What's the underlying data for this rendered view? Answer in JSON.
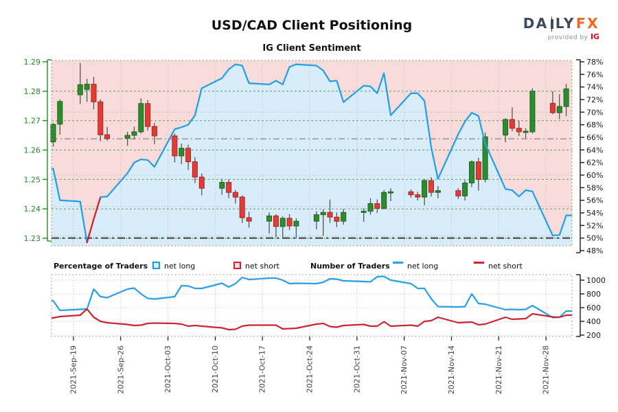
{
  "header": {
    "title": "USD/CAD Client Positioning",
    "subtitle": "IG Client Sentiment",
    "logo": {
      "part1": "DA",
      "part2": "LY",
      "part3": "FX",
      "provided_by": "provided by",
      "ig": "IG"
    }
  },
  "legend": {
    "pct_title": "Percentage of Traders",
    "pct_net_long": "net long",
    "pct_net_short": "net short",
    "num_title": "Number of Traders",
    "num_net_long": "net long",
    "num_net_short": "net short"
  },
  "colors": {
    "accent_blue": "#27a0e5",
    "accent_red": "#cc2433",
    "sentiment_red": "#cf2030",
    "candle_up": "#2e8b2e",
    "candle_up_border": "#1c641c",
    "candle_down": "#e23d35",
    "candle_down_border": "#aa2420",
    "wick": "#555555",
    "fill_above_line": "#f8dcdc",
    "fill_below_line": "#d8ecf9",
    "grid_green": "#3da23d",
    "grid_gray": "#c9c9c9",
    "dotted_gray": "#bbbbbb",
    "dashdot_price": "#8c8c8c",
    "dashdot_fifty": "#606060",
    "border_main": "#7aa87a",
    "border_traders": "#a6a6a6",
    "axis_price_green": "#1f8a1f",
    "axis_dark": "#1a1a1a",
    "date_label": "#3d4554",
    "logo_daily": "#3d4a5c",
    "logo_fx": "#f4641d",
    "logo_ig": "#e40521"
  },
  "chart_data": {
    "type": "candlestick+line",
    "title": "USD/CAD Client Positioning",
    "subtitle": "IG Client Sentiment",
    "price_axis": {
      "side": "left",
      "min": 1.23,
      "max": 1.29,
      "tick_step": 0.01,
      "ticks": [
        1.23,
        1.24,
        1.25,
        1.26,
        1.27,
        1.28,
        1.29
      ]
    },
    "pct_axis": {
      "side": "right",
      "min": 48,
      "max": 78,
      "tick_step": 2,
      "ticks": [
        48,
        50,
        52,
        54,
        56,
        58,
        60,
        62,
        64,
        66,
        68,
        70,
        72,
        74,
        76,
        78
      ]
    },
    "count_axis": {
      "side": "right",
      "min": 200,
      "max": 1000,
      "tick_step": 200,
      "ticks": [
        200,
        400,
        600,
        800,
        1000
      ]
    },
    "date_ticks": [
      {
        "label": "2021-Sep-19",
        "day": 3
      },
      {
        "label": "2021-Sep-26",
        "day": 10
      },
      {
        "label": "2021-Oct-03",
        "day": 17
      },
      {
        "label": "2021-Oct-10",
        "day": 24
      },
      {
        "label": "2021-Oct-17",
        "day": 31
      },
      {
        "label": "2021-Oct-24",
        "day": 38
      },
      {
        "label": "2021-Oct-31",
        "day": 45
      },
      {
        "label": "2021-Nov-07",
        "day": 52
      },
      {
        "label": "2021-Nov-14",
        "day": 59
      },
      {
        "label": "2021-Nov-21",
        "day": 66
      },
      {
        "label": "2021-Nov-28",
        "day": 73
      }
    ],
    "hlines": {
      "price_dashdot": 1.2638,
      "pct_dashdot": 50.0,
      "pct_dotted": [
        70,
        60,
        55,
        50.4
      ]
    },
    "sentiment_red_segment": [
      3,
      5
    ],
    "dates": [
      "2021-09-16",
      "2021-09-17",
      "2021-09-20",
      "2021-09-21",
      "2021-09-22",
      "2021-09-23",
      "2021-09-24",
      "2021-09-27",
      "2021-09-28",
      "2021-09-29",
      "2021-09-30",
      "2021-10-01",
      "2021-10-04",
      "2021-10-05",
      "2021-10-06",
      "2021-10-07",
      "2021-10-08",
      "2021-10-11",
      "2021-10-12",
      "2021-10-13",
      "2021-10-14",
      "2021-10-15",
      "2021-10-18",
      "2021-10-19",
      "2021-10-20",
      "2021-10-21",
      "2021-10-22",
      "2021-10-25",
      "2021-10-26",
      "2021-10-27",
      "2021-10-28",
      "2021-10-29",
      "2021-11-01",
      "2021-11-02",
      "2021-11-03",
      "2021-11-04",
      "2021-11-05",
      "2021-11-08",
      "2021-11-09",
      "2021-11-10",
      "2021-11-11",
      "2021-11-12",
      "2021-11-15",
      "2021-11-16",
      "2021-11-17",
      "2021-11-18",
      "2021-11-19",
      "2021-11-22",
      "2021-11-23",
      "2021-11-24",
      "2021-11-25",
      "2021-11-26",
      "2021-11-29",
      "2021-11-30",
      "2021-12-01"
    ],
    "day_offsets": [
      0,
      1,
      4,
      5,
      6,
      7,
      8,
      11,
      12,
      13,
      14,
      15,
      18,
      19,
      20,
      21,
      22,
      25,
      26,
      27,
      28,
      29,
      32,
      33,
      34,
      35,
      36,
      39,
      40,
      41,
      42,
      43,
      46,
      47,
      48,
      49,
      50,
      53,
      54,
      55,
      56,
      57,
      60,
      61,
      62,
      63,
      64,
      67,
      68,
      69,
      70,
      71,
      74,
      75,
      76
    ],
    "ohlc": [
      [
        1.2628,
        1.2692,
        1.2612,
        1.2687
      ],
      [
        1.2688,
        1.2772,
        1.2652,
        1.2765
      ],
      [
        1.2788,
        1.2896,
        1.2756,
        1.2822
      ],
      [
        1.2806,
        1.2842,
        1.2764,
        1.2824
      ],
      [
        1.2824,
        1.2849,
        1.2738,
        1.2764
      ],
      [
        1.2764,
        1.2772,
        1.263,
        1.2652
      ],
      [
        1.2652,
        1.2678,
        1.2632,
        1.264
      ],
      [
        1.264,
        1.2662,
        1.2614,
        1.265
      ],
      [
        1.265,
        1.268,
        1.2636,
        1.2662
      ],
      [
        1.2662,
        1.2776,
        1.2656,
        1.2758
      ],
      [
        1.2758,
        1.277,
        1.2666,
        1.268
      ],
      [
        1.268,
        1.2692,
        1.262,
        1.2648
      ],
      [
        1.2648,
        1.2656,
        1.2558,
        1.258
      ],
      [
        1.258,
        1.2622,
        1.2552,
        1.2606
      ],
      [
        1.2606,
        1.2618,
        1.2532,
        1.256
      ],
      [
        1.256,
        1.2576,
        1.2488,
        1.2508
      ],
      [
        1.2508,
        1.252,
        1.2446,
        1.247
      ],
      [
        1.247,
        1.2502,
        1.2448,
        1.249
      ],
      [
        1.249,
        1.25,
        1.2436,
        1.2456
      ],
      [
        1.2456,
        1.2464,
        1.2418,
        1.244
      ],
      [
        1.244,
        1.2446,
        1.2352,
        1.237
      ],
      [
        1.237,
        1.239,
        1.2336,
        1.2358
      ],
      [
        1.2358,
        1.2388,
        1.2316,
        1.2376
      ],
      [
        1.2376,
        1.2382,
        1.2304,
        1.234
      ],
      [
        1.234,
        1.2374,
        1.2302,
        1.2368
      ],
      [
        1.2368,
        1.2382,
        1.2328,
        1.2342
      ],
      [
        1.2342,
        1.2368,
        1.23,
        1.2358
      ],
      [
        1.2358,
        1.2392,
        1.233,
        1.238
      ],
      [
        1.238,
        1.2398,
        1.2308,
        1.2388
      ],
      [
        1.2388,
        1.2432,
        1.2352,
        1.2372
      ],
      [
        1.2372,
        1.2388,
        1.2338,
        1.2358
      ],
      [
        1.2358,
        1.24,
        1.2346,
        1.2388
      ],
      [
        1.2388,
        1.2402,
        1.2356,
        1.2392
      ],
      [
        1.2392,
        1.2436,
        1.238,
        1.2418
      ],
      [
        1.2418,
        1.2432,
        1.2386,
        1.2402
      ],
      [
        1.2402,
        1.2464,
        1.2398,
        1.2456
      ],
      [
        1.2456,
        1.247,
        1.2426,
        1.2458
      ],
      [
        1.2458,
        1.2466,
        1.2438,
        1.2448
      ],
      [
        1.2448,
        1.2458,
        1.2428,
        1.244
      ],
      [
        1.244,
        1.2502,
        1.2412,
        1.2496
      ],
      [
        1.2496,
        1.2508,
        1.2442,
        1.2456
      ],
      [
        1.2456,
        1.2478,
        1.2436,
        1.2462
      ],
      [
        1.2462,
        1.247,
        1.2434,
        1.2444
      ],
      [
        1.2444,
        1.2498,
        1.2428,
        1.2488
      ],
      [
        1.2488,
        1.2565,
        1.2474,
        1.256
      ],
      [
        1.256,
        1.2574,
        1.2462,
        1.25
      ],
      [
        1.25,
        1.266,
        1.249,
        1.2645
      ],
      [
        1.2651,
        1.2708,
        1.2626,
        1.2704
      ],
      [
        1.2704,
        1.2745,
        1.2664,
        1.2674
      ],
      [
        1.2674,
        1.27,
        1.2648,
        1.2662
      ],
      [
        1.266,
        1.2674,
        1.264,
        1.2664
      ],
      [
        1.2662,
        1.281,
        1.2656,
        1.28
      ],
      [
        1.2759,
        1.28,
        1.2722,
        1.2727
      ],
      [
        1.2727,
        1.279,
        1.2705,
        1.2748
      ],
      [
        1.2748,
        1.2825,
        1.2715,
        1.2808
      ]
    ],
    "net_long_pct": [
      61.0,
      56.0,
      55.8,
      49.3,
      53.0,
      56.5,
      56.6,
      60.3,
      62.0,
      62.5,
      62.4,
      61.3,
      67.3,
      67.6,
      68.0,
      69.5,
      73.8,
      75.4,
      76.8,
      77.6,
      77.4,
      74.6,
      74.4,
      75.0,
      74.4,
      77.2,
      77.6,
      77.4,
      76.6,
      74.9,
      75.0,
      71.6,
      74.2,
      74.1,
      73.0,
      76.2,
      69.5,
      73.0,
      73.0,
      71.8,
      64.4,
      59.4,
      66.5,
      68.5,
      69.9,
      69.4,
      65.0,
      57.8,
      57.6,
      56.6,
      57.6,
      57.4,
      50.4,
      50.5,
      53.6
    ],
    "net_long_count": [
      700,
      560,
      575,
      580,
      870,
      760,
      745,
      870,
      885,
      800,
      735,
      725,
      760,
      920,
      915,
      880,
      880,
      955,
      900,
      950,
      1040,
      1010,
      1030,
      1030,
      1000,
      950,
      955,
      950,
      970,
      1020,
      1015,
      990,
      980,
      975,
      1050,
      1055,
      1000,
      950,
      880,
      880,
      730,
      615,
      610,
      615,
      800,
      660,
      650,
      570,
      575,
      570,
      575,
      630,
      455,
      460,
      550
    ],
    "net_short_count": [
      450,
      470,
      490,
      580,
      460,
      400,
      380,
      355,
      340,
      345,
      370,
      375,
      370,
      360,
      330,
      340,
      330,
      305,
      280,
      285,
      330,
      345,
      345,
      345,
      290,
      295,
      300,
      360,
      370,
      325,
      315,
      340,
      355,
      330,
      330,
      395,
      330,
      345,
      330,
      400,
      410,
      460,
      380,
      385,
      390,
      350,
      360,
      460,
      430,
      435,
      440,
      510,
      465,
      460,
      490
    ]
  }
}
